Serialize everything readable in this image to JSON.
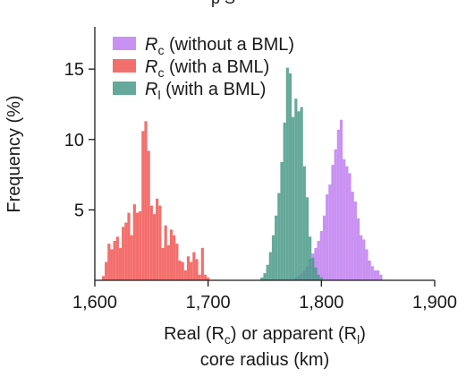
{
  "chart_data": {
    "type": "bar",
    "title": "",
    "top_text_fragment": "p     S",
    "xlabel_line1": "Real (R",
    "xlabel_line1_sub1": "c",
    "xlabel_line1_mid": ") or apparent (R",
    "xlabel_line1_sub2": "l",
    "xlabel_line1_end": ")",
    "xlabel_line2": "core radius (km)",
    "ylabel": "Frequency (%)",
    "xlim": [
      1600,
      1900
    ],
    "ylim": [
      0,
      18
    ],
    "xticks": [
      1600,
      1700,
      1800,
      1900
    ],
    "xtick_labels": [
      "1,600",
      "1,700",
      "1,800",
      "1,900"
    ],
    "yticks": [
      5,
      10,
      15
    ],
    "ytick_labels": [
      "5",
      "10",
      "15"
    ],
    "bin_width": 2.5,
    "legend_position": "top-left",
    "series": [
      {
        "legend_main": "R",
        "legend_sub": "c",
        "legend_rest": " (without a BML)",
        "color": "#c07ef0",
        "opacity": 0.85,
        "x": [
          1777.5,
          1780,
          1782.5,
          1785,
          1787.5,
          1790,
          1792.5,
          1795,
          1797.5,
          1800,
          1802.5,
          1805,
          1807.5,
          1810,
          1812.5,
          1815,
          1817.5,
          1820,
          1822.5,
          1825,
          1827.5,
          1830,
          1832.5,
          1835,
          1837.5,
          1840,
          1842.5,
          1845,
          1847.5,
          1850,
          1852.5
        ],
        "values": [
          0.2,
          0.3,
          0.5,
          0.7,
          1.0,
          1.5,
          1.9,
          2.3,
          2.8,
          3.5,
          4.6,
          6.1,
          6.8,
          8.2,
          9.3,
          10.7,
          11.4,
          8.6,
          8.1,
          7.6,
          6.3,
          5.6,
          4.4,
          3.2,
          2.9,
          2.2,
          1.4,
          1.0,
          0.7,
          0.7,
          0.4
        ]
      },
      {
        "legend_main": "R",
        "legend_sub": "c",
        "legend_rest": " (with a BML)",
        "color": "#f25f5c",
        "opacity": 0.9,
        "x": [
          1607.5,
          1610,
          1612.5,
          1615,
          1617.5,
          1620,
          1622.5,
          1625,
          1627.5,
          1630,
          1632.5,
          1635,
          1637.5,
          1640,
          1642.5,
          1645,
          1647.5,
          1650,
          1652.5,
          1655,
          1657.5,
          1660,
          1662.5,
          1665,
          1667.5,
          1670,
          1672.5,
          1675,
          1677.5,
          1680,
          1682.5,
          1685,
          1687.5,
          1690,
          1692.5,
          1695,
          1697.5,
          1700
        ],
        "values": [
          0.3,
          1.3,
          2.6,
          2.2,
          2.8,
          3.1,
          2.3,
          3.8,
          4.1,
          4.8,
          3.2,
          5.4,
          4.8,
          4.9,
          10.6,
          11.3,
          9.2,
          5.3,
          4.7,
          5.8,
          5.3,
          2.3,
          3.9,
          2.5,
          3.6,
          3.2,
          2.6,
          1.4,
          1.3,
          0.7,
          1.7,
          1.3,
          2.0,
          1.5,
          0.4,
          2.3,
          0.4,
          0.2
        ]
      },
      {
        "legend_main": "R",
        "legend_sub": "l",
        "legend_rest": " (with a BML)",
        "color": "#4a9a88",
        "opacity": 0.85,
        "x": [
          1747.5,
          1750,
          1752.5,
          1755,
          1757.5,
          1760,
          1762.5,
          1765,
          1767.5,
          1770,
          1772.5,
          1775,
          1777.5,
          1780,
          1782.5,
          1785,
          1787.5,
          1790,
          1792.5,
          1795,
          1797.5,
          1800
        ],
        "values": [
          0.2,
          0.5,
          1.1,
          2.0,
          3.2,
          4.6,
          6.2,
          8.4,
          11.2,
          15.1,
          14.7,
          11.6,
          12.9,
          12.0,
          12.3,
          8.1,
          5.9,
          3.1,
          1.6,
          0.9,
          0.4,
          0.2
        ]
      }
    ]
  }
}
